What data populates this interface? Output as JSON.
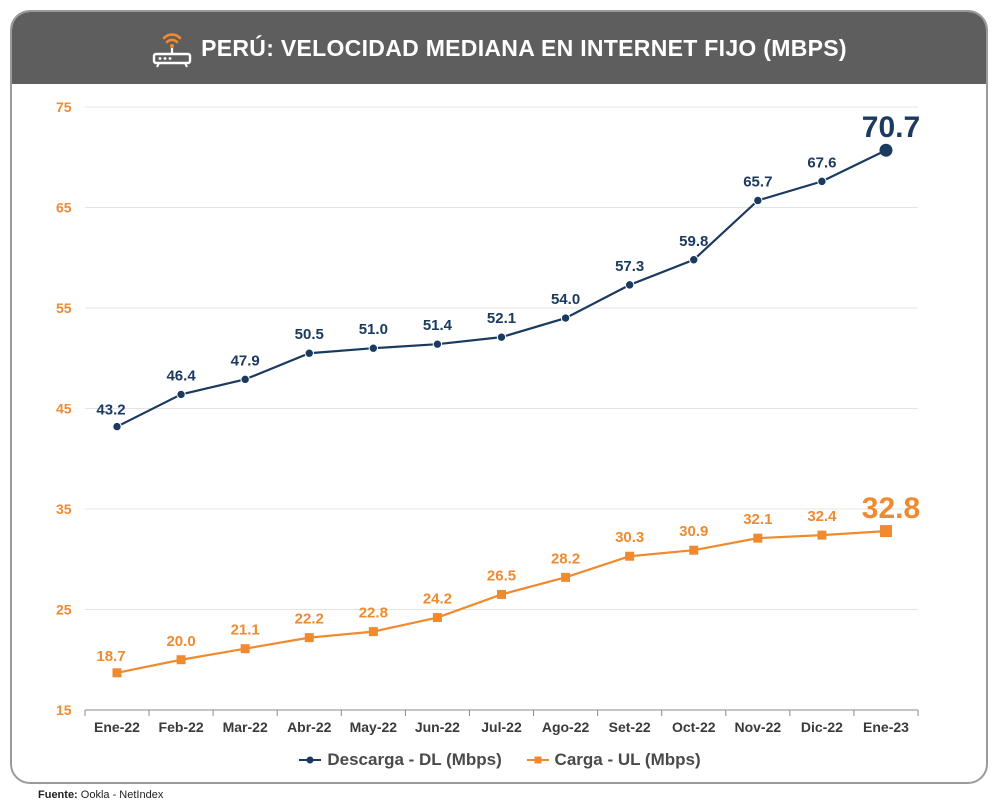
{
  "header": {
    "title": "PERÚ: VELOCIDAD MEDIANA EN INTERNET FIJO (MBPS)",
    "icon": "wifi-router-icon"
  },
  "colors": {
    "download": "#1b3a60",
    "upload": "#f08a2e",
    "axis_label": "#f08a2e",
    "grid": "#e4e4e4"
  },
  "legend": {
    "download_label": "Descarga - DL (Mbps)",
    "upload_label": "Carga - UL (Mbps)"
  },
  "footer": {
    "source_label": "Fuente:",
    "source_value": "Ookla - NetIndex"
  },
  "chart_data": {
    "type": "line",
    "title": "PERÚ: VELOCIDAD MEDIANA EN INTERNET FIJO (MBPS)",
    "xlabel": "",
    "ylabel": "",
    "categories": [
      "Ene-22",
      "Feb-22",
      "Mar-22",
      "Abr-22",
      "May-22",
      "Jun-22",
      "Jul-22",
      "Ago-22",
      "Set-22",
      "Oct-22",
      "Nov-22",
      "Dic-22",
      "Ene-23"
    ],
    "ylim": [
      15,
      75
    ],
    "yticks": [
      15,
      25,
      35,
      45,
      55,
      65,
      75
    ],
    "grid": true,
    "legend_position": "bottom",
    "series": [
      {
        "name": "Descarga - DL (Mbps)",
        "marker": "circle",
        "values": [
          43.2,
          46.4,
          47.9,
          50.5,
          51.0,
          51.4,
          52.1,
          54.0,
          57.3,
          59.8,
          65.7,
          67.6,
          70.7
        ],
        "labels": [
          "43.2",
          "46.4",
          "47.9",
          "50.5",
          "51.0",
          "51.4",
          "52.1",
          "54.0",
          "57.3",
          "59.8",
          "65.7",
          "67.6",
          "70.7"
        ]
      },
      {
        "name": "Carga - UL (Mbps)",
        "marker": "square",
        "values": [
          18.7,
          20.0,
          21.1,
          22.2,
          22.8,
          24.2,
          26.5,
          28.2,
          30.3,
          30.9,
          32.1,
          32.4,
          32.8
        ],
        "labels": [
          "18.7",
          "20.0",
          "21.1",
          "22.2",
          "22.8",
          "24.2",
          "26.5",
          "28.2",
          "30.3",
          "30.9",
          "32.1",
          "32.4",
          "32.8"
        ]
      }
    ]
  }
}
